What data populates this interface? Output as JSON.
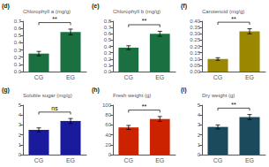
{
  "chart_data": [
    {
      "type": "bar",
      "title": "(d)",
      "ylabel": "Chlorophyll a (mg/g)",
      "categories": [
        "CG",
        "EG"
      ],
      "values": [
        0.25,
        0.55
      ],
      "errors": [
        0.03,
        0.04
      ],
      "annotation": "**",
      "color": "#1a7040",
      "ylim": [
        0,
        0.7
      ],
      "yticks": [
        {
          "value": 0,
          "label": "0.0"
        },
        0.1,
        0.2,
        0.3,
        0.4,
        0.5,
        0.6,
        0.7
      ],
      "grid": false
    },
    {
      "type": "bar",
      "title": "(e)",
      "ylabel": "Chlorophyll b (mg/g)",
      "categories": [
        "CG",
        "EG"
      ],
      "values": [
        0.38,
        0.6
      ],
      "errors": [
        0.03,
        0.04
      ],
      "annotation": "**",
      "color": "#1a7040",
      "ylim": [
        0,
        0.8
      ],
      "yticks": [
        {
          "value": 0,
          "label": "0.0"
        },
        0.1,
        0.2,
        0.3,
        0.4,
        0.5,
        0.6,
        0.7,
        0.8
      ],
      "grid": false
    },
    {
      "type": "bar",
      "title": "(f)",
      "ylabel": "Carotenoid (mg/g)",
      "categories": [
        "CG",
        "EG"
      ],
      "values": [
        0.1,
        0.32
      ],
      "errors": [
        0.01,
        0.02
      ],
      "annotation": "**",
      "color": "#9b8800",
      "ylim": [
        0,
        0.4
      ],
      "yticks": [
        {
          "value": 0,
          "label": "0.00"
        },
        0.05,
        {
          "value": 0.1,
          "label": "0.10"
        },
        0.15,
        {
          "value": 0.2,
          "label": "0.20"
        },
        0.25,
        {
          "value": 0.3,
          "label": "0.30"
        },
        0.35,
        {
          "value": 0.4,
          "label": "0.40"
        }
      ],
      "grid": false
    },
    {
      "type": "bar",
      "title": "(g)",
      "ylabel": "Soluble sugar (mg/g)",
      "categories": [
        "CG",
        "EG"
      ],
      "values": [
        2.5,
        3.4
      ],
      "errors": [
        0.2,
        0.25
      ],
      "annotation": "ns",
      "color": "#1a1a9c",
      "ylim": [
        0,
        5
      ],
      "yticks": [
        0,
        1,
        2,
        3,
        4,
        5
      ],
      "grid": false
    },
    {
      "type": "bar",
      "title": "(h)",
      "ylabel": "Fresh weight (g)",
      "categories": [
        "CG",
        "EG"
      ],
      "values": [
        55,
        72
      ],
      "errors": [
        4,
        5
      ],
      "annotation": "**",
      "color": "#cc2200",
      "ylim": [
        0,
        100
      ],
      "yticks": [
        0,
        20,
        40,
        60,
        80,
        100
      ],
      "grid": false
    },
    {
      "type": "bar",
      "title": "(i)",
      "ylabel": "Dry weight (g)",
      "categories": [
        "CG",
        "EG"
      ],
      "values": [
        2.8,
        3.8
      ],
      "errors": [
        0.2,
        0.25
      ],
      "annotation": "**",
      "color": "#1a4a5c",
      "ylim": [
        0,
        5
      ],
      "yticks": [
        0,
        1,
        2,
        3,
        4,
        5
      ],
      "grid": false
    }
  ]
}
